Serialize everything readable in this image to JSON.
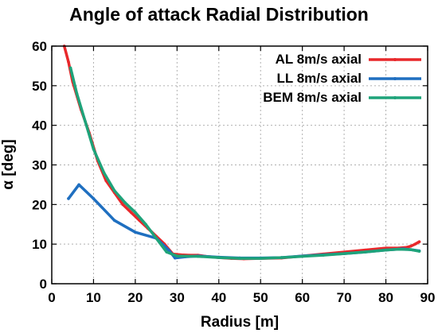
{
  "chart_data": {
    "type": "line",
    "title": "Angle of attack Radial Distribution",
    "xlabel": "Radius [m]",
    "ylabel": "α [deg]",
    "xlim": [
      0,
      90
    ],
    "ylim": [
      0,
      60
    ],
    "xticks": [
      0,
      10,
      20,
      30,
      40,
      50,
      60,
      70,
      80,
      90
    ],
    "yticks": [
      0,
      10,
      20,
      30,
      40,
      50,
      60
    ],
    "grid": true,
    "legend_position": "top-right",
    "series": [
      {
        "name": "AL 8m/s axial",
        "color": "#e8282b",
        "x": [
          3,
          4,
          5,
          7,
          9,
          11,
          13,
          15,
          17,
          19,
          21,
          23,
          25,
          27,
          29,
          31,
          33,
          35,
          37,
          40,
          43,
          46,
          50,
          55,
          60,
          65,
          70,
          75,
          80,
          83,
          85,
          86,
          87,
          88
        ],
        "y": [
          60,
          56,
          51,
          44,
          38,
          31,
          26,
          23,
          20,
          18,
          16,
          14,
          12,
          10,
          7.5,
          7.3,
          7.2,
          7.2,
          6.9,
          6.6,
          6.4,
          6.3,
          6.4,
          6.5,
          7.0,
          7.5,
          8.0,
          8.5,
          9.0,
          9.0,
          9.2,
          9.5,
          10.0,
          10.6
        ]
      },
      {
        "name": "LL 8m/s axial",
        "color": "#1f6fc0",
        "x": [
          4,
          6.5,
          10,
          15,
          20,
          25,
          28,
          29.5,
          32,
          35,
          40,
          45,
          50,
          55,
          60,
          65,
          70,
          75,
          80,
          84,
          86,
          88
        ],
        "y": [
          21.5,
          25,
          21.5,
          16,
          13,
          11.5,
          8.5,
          6.5,
          6.8,
          7.0,
          6.7,
          6.5,
          6.5,
          6.6,
          7.0,
          7.3,
          7.6,
          8.0,
          8.5,
          8.8,
          8.6,
          8.3
        ]
      },
      {
        "name": "BEM 8m/s axial",
        "color": "#1ea37a",
        "x": [
          4.5,
          6,
          8,
          10,
          12.5,
          15,
          17.5,
          20,
          22.5,
          25,
          27.5,
          30,
          35,
          40,
          45,
          50,
          55,
          60,
          65,
          70,
          75,
          80,
          83,
          86,
          88
        ],
        "y": [
          54.5,
          48,
          41,
          34,
          28,
          23.5,
          20.5,
          18,
          15,
          11.5,
          8,
          7.0,
          6.9,
          6.6,
          6.4,
          6.4,
          6.6,
          6.9,
          7.2,
          7.6,
          8.0,
          8.5,
          8.7,
          8.6,
          8.2
        ]
      }
    ]
  }
}
